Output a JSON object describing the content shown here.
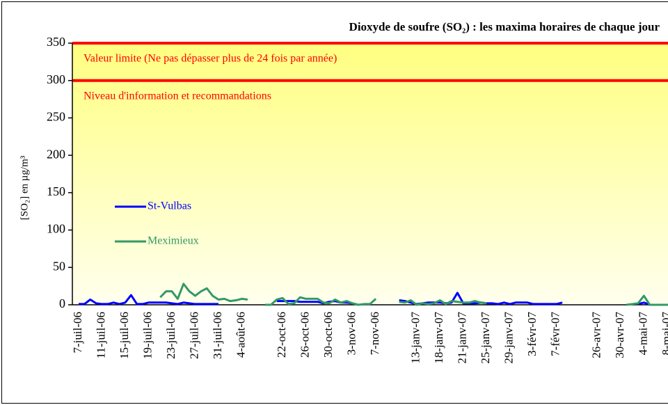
{
  "chart_data": {
    "type": "line",
    "title": "Dioxyde de soufre (SO₂) : les maxima horaires de chaque jour",
    "y_label": "[SO₂] en µg/m³",
    "ylim": [
      0,
      350
    ],
    "yticks": [
      0,
      50,
      100,
      150,
      200,
      250,
      300,
      350
    ],
    "reference_lines": [
      {
        "value": 350,
        "label": "Valeur limite (Ne pas dépasser plus de 24 fois par année)",
        "color": "#ff0000"
      },
      {
        "value": 300,
        "label": "Niveau d'information et recommandations",
        "color": "#ff0000"
      }
    ],
    "categories": [
      "7-juil-06",
      null,
      null,
      null,
      "11-juil-06",
      null,
      null,
      null,
      "15-juil-06",
      null,
      null,
      null,
      "19-juil-06",
      null,
      null,
      null,
      "23-juil-06",
      null,
      null,
      null,
      "27-juil-06",
      null,
      null,
      null,
      "31-juil-06",
      null,
      null,
      null,
      "4-août-06",
      null,
      null,
      null,
      null,
      null,
      null,
      "22-oct-06",
      null,
      null,
      null,
      "26-oct-06",
      null,
      null,
      null,
      "30-oct-06",
      null,
      null,
      null,
      "3-nov-06",
      null,
      null,
      null,
      "7-nov-06",
      null,
      null,
      null,
      null,
      null,
      null,
      "13-janv-07",
      null,
      null,
      null,
      "18-janv-07",
      null,
      null,
      null,
      "21-janv-07",
      null,
      null,
      null,
      "25-janv-07",
      null,
      null,
      null,
      "29-janv-07",
      null,
      null,
      null,
      "3-févr-07",
      null,
      null,
      null,
      "7-févr-07",
      null,
      null,
      null,
      null,
      null,
      null,
      "26-avr-07",
      null,
      null,
      null,
      "30-avr-07",
      null,
      null,
      null,
      "4-mai-07",
      null,
      null,
      null,
      "8-mai-07",
      null
    ],
    "series": [
      {
        "name": "St-Vulbas",
        "color": "#0000ff",
        "values": [
          1,
          1,
          7,
          2,
          1,
          1,
          3,
          1,
          3,
          13,
          1,
          1,
          3,
          3,
          3,
          3,
          2,
          1,
          3,
          2,
          1,
          1,
          1,
          1,
          1,
          null,
          null,
          null,
          null,
          null,
          null,
          null,
          null,
          null,
          5,
          5,
          5,
          5,
          4,
          4,
          4,
          4,
          2,
          4,
          5,
          3,
          3,
          2,
          null,
          null,
          null,
          null,
          null,
          null,
          null,
          6,
          5,
          3,
          1,
          2,
          3,
          3,
          3,
          2,
          3,
          16,
          2,
          2,
          2,
          3,
          2,
          2,
          1,
          3,
          1,
          3,
          3,
          3,
          1,
          1,
          1,
          1,
          1,
          3,
          null,
          null,
          null,
          null,
          null,
          null,
          null,
          null,
          null,
          null,
          null,
          null,
          1,
          3,
          0,
          0,
          0,
          0,
          0
        ]
      },
      {
        "name": "Meximieux",
        "color": "#339966",
        "values": [
          null,
          null,
          null,
          null,
          null,
          null,
          null,
          null,
          null,
          null,
          null,
          null,
          null,
          null,
          10,
          18,
          18,
          8,
          28,
          18,
          12,
          18,
          22,
          12,
          7,
          8,
          5,
          6,
          8,
          7,
          null,
          null,
          0,
          0,
          7,
          9,
          1,
          2,
          10,
          8,
          8,
          8,
          3,
          2,
          7,
          3,
          5,
          2,
          0,
          1,
          1,
          8,
          null,
          null,
          null,
          4,
          3,
          6,
          0,
          2,
          1,
          2,
          6,
          1,
          5,
          4,
          3,
          3,
          5,
          3,
          2,
          null,
          null,
          null,
          null,
          null,
          null,
          null,
          null,
          null,
          null,
          null,
          null,
          null,
          null,
          null,
          null,
          null,
          null,
          null,
          null,
          null,
          null,
          null,
          0,
          1,
          2,
          12,
          0,
          0,
          0,
          0,
          0
        ]
      }
    ]
  }
}
